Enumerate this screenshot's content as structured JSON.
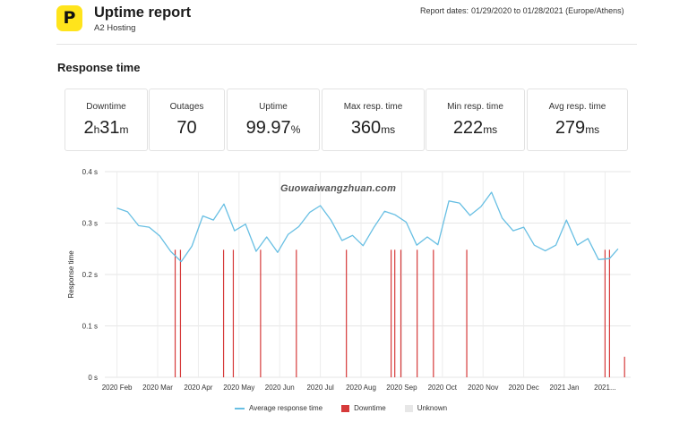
{
  "header": {
    "logo_letter": "P",
    "title": "Uptime report",
    "subtitle": "A2 Hosting",
    "report_dates_label": "Report dates:",
    "report_dates_value": "01/29/2020 to 01/28/2021 (Europe/Athens)"
  },
  "section_title": "Response time",
  "stats": [
    {
      "label": "Downtime",
      "value_parts": [
        "2",
        "h",
        "31",
        "m"
      ]
    },
    {
      "label": "Outages",
      "value": "70"
    },
    {
      "label": "Uptime",
      "value": "99.97",
      "unit": "%"
    },
    {
      "label": "Max resp. time",
      "value": "360",
      "unit": "ms"
    },
    {
      "label": "Min resp. time",
      "value": "222",
      "unit": "ms"
    },
    {
      "label": "Avg resp. time",
      "value": "279",
      "unit": "ms"
    }
  ],
  "watermark": "Guowaiwangzhuan.com",
  "chart_data": {
    "type": "line",
    "title": "",
    "xlabel": "",
    "ylabel": "Response time",
    "ylim": [
      0,
      0.4
    ],
    "y_ticks": [
      "0 s",
      "0.1 s",
      "0.2 s",
      "0.3 s",
      "0.4 s"
    ],
    "x_ticks": [
      "2020 Feb",
      "2020 Mar",
      "2020 Apr",
      "2020 May",
      "2020 Jun",
      "2020 Jul",
      "2020 Aug",
      "2020 Sep",
      "2020 Oct",
      "2020 Nov",
      "2020 Dec",
      "2021 Jan",
      "2021..."
    ],
    "grid": true,
    "legend_position": "bottom",
    "series": [
      {
        "name": "Average response time",
        "color": "#68bfe3",
        "x_month": [
          0.0,
          0.26,
          0.53,
          0.79,
          1.05,
          1.32,
          1.58,
          1.84,
          2.11,
          2.37,
          2.63,
          2.89,
          3.16,
          3.42,
          3.68,
          3.95,
          4.21,
          4.47,
          4.74,
          5.0,
          5.26,
          5.53,
          5.79,
          6.05,
          6.32,
          6.58,
          6.84,
          7.11,
          7.37,
          7.63,
          7.89,
          8.16,
          8.42,
          8.68,
          8.95,
          9.21,
          9.47,
          9.74,
          10.0,
          10.26,
          10.53,
          10.79,
          11.05,
          11.32,
          11.58,
          11.84,
          12.11,
          12.32
        ],
        "values": [
          0.329,
          0.322,
          0.295,
          0.292,
          0.275,
          0.245,
          0.225,
          0.255,
          0.314,
          0.306,
          0.337,
          0.285,
          0.298,
          0.245,
          0.273,
          0.243,
          0.278,
          0.293,
          0.321,
          0.334,
          0.306,
          0.266,
          0.276,
          0.256,
          0.292,
          0.323,
          0.316,
          0.302,
          0.257,
          0.273,
          0.258,
          0.343,
          0.339,
          0.315,
          0.332,
          0.36,
          0.31,
          0.285,
          0.292,
          0.257,
          0.246,
          0.257,
          0.306,
          0.257,
          0.27,
          0.229,
          0.231,
          0.25
        ]
      },
      {
        "name": "Downtime",
        "color": "#d63a3a",
        "type": "events",
        "x_month": [
          1.43,
          1.56,
          2.62,
          2.86,
          3.53,
          4.41,
          5.64,
          6.74,
          6.83,
          6.98,
          7.38,
          7.78,
          8.6,
          12.0,
          12.11
        ]
      },
      {
        "name": "Unknown",
        "color": "#e7e7e7",
        "type": "events",
        "x_month": []
      }
    ]
  }
}
